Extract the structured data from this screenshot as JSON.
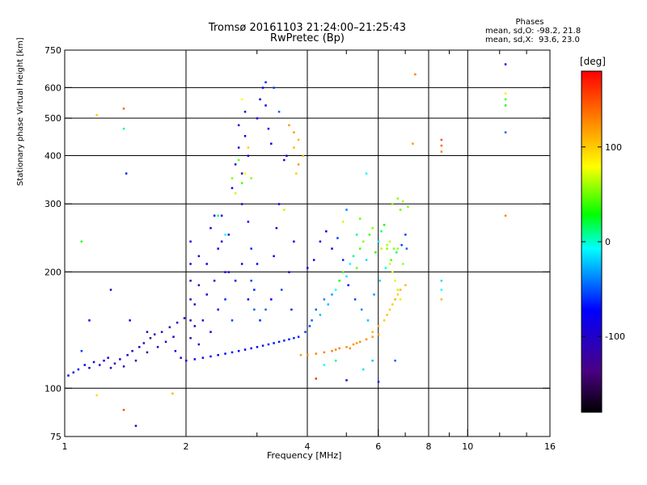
{
  "header": {
    "title": "Tromsø 20161103 21:24:00–21:25:43",
    "subtitle": "RwPretec (Bp)"
  },
  "phase_box": {
    "title": "Phases",
    "line_o": "mean, sd,O: -98.2, 21.8",
    "line_x": "mean, sd,X:  93.6, 23.0"
  },
  "colorbar": {
    "unit": "[deg]",
    "ticks": [
      "100",
      "0",
      "-100"
    ],
    "tick_values": [
      100,
      0,
      -100
    ],
    "range": [
      -180,
      180
    ]
  },
  "chart_data": {
    "type": "scatter",
    "xlabel": "Frequency [MHz]",
    "ylabel": "Stationary phase Virtual Height [km]",
    "x_scale": "log",
    "y_scale": "log",
    "xlim": [
      1,
      16
    ],
    "ylim": [
      75,
      750
    ],
    "x_ticks": [
      "1",
      "2",
      "4",
      "6",
      "8",
      "10",
      "16"
    ],
    "x_tick_values": [
      1,
      2,
      4,
      6,
      8,
      10,
      16
    ],
    "y_ticks": [
      "75",
      "100",
      "200",
      "300",
      "400",
      "500",
      "600",
      "750"
    ],
    "y_tick_values": [
      75,
      100,
      200,
      300,
      400,
      500,
      600,
      750
    ],
    "grid": true,
    "points": [
      [
        1.02,
        108,
        -110
      ],
      [
        1.05,
        110,
        -110
      ],
      [
        1.08,
        112,
        -100
      ],
      [
        1.12,
        115,
        -105
      ],
      [
        1.15,
        113,
        -110
      ],
      [
        1.18,
        117,
        -115
      ],
      [
        1.22,
        115,
        -120
      ],
      [
        1.25,
        118,
        -118
      ],
      [
        1.28,
        120,
        -115
      ],
      [
        1.3,
        113,
        -120
      ],
      [
        1.33,
        116,
        -125
      ],
      [
        1.37,
        119,
        -120
      ],
      [
        1.4,
        114,
        -130
      ],
      [
        1.43,
        122,
        -125
      ],
      [
        1.47,
        125,
        -130
      ],
      [
        1.5,
        118,
        -132
      ],
      [
        1.53,
        128,
        -128
      ],
      [
        1.57,
        131,
        -135
      ],
      [
        1.6,
        124,
        -130
      ],
      [
        1.63,
        135,
        -135
      ],
      [
        1.67,
        138,
        -130
      ],
      [
        1.7,
        128,
        -125
      ],
      [
        1.74,
        140,
        -130
      ],
      [
        1.78,
        132,
        -128
      ],
      [
        1.82,
        144,
        -130
      ],
      [
        1.86,
        136,
        -122
      ],
      [
        1.9,
        148,
        -125
      ],
      [
        1.94,
        120,
        -118
      ],
      [
        1.98,
        152,
        -120
      ],
      [
        1.88,
        125,
        -120
      ],
      [
        1.1,
        125,
        -80
      ],
      [
        1.15,
        150,
        -100
      ],
      [
        1.3,
        180,
        -130
      ],
      [
        1.45,
        150,
        -120
      ],
      [
        1.6,
        140,
        -125
      ],
      [
        1.4,
        470,
        -10
      ],
      [
        1.4,
        530,
        140
      ],
      [
        1.42,
        360,
        -90
      ],
      [
        1.2,
        510,
        100
      ],
      [
        1.1,
        240,
        10
      ],
      [
        1.4,
        88,
        150
      ],
      [
        1.2,
        96,
        95
      ],
      [
        1.5,
        80,
        -120
      ],
      [
        1.85,
        97,
        110
      ],
      [
        2.0,
        118,
        -110
      ],
      [
        2.1,
        119,
        -110
      ],
      [
        2.2,
        120,
        -105
      ],
      [
        2.3,
        121,
        -105
      ],
      [
        2.4,
        122,
        -105
      ],
      [
        2.5,
        123,
        -100
      ],
      [
        2.6,
        124,
        -100
      ],
      [
        2.7,
        125,
        -100
      ],
      [
        2.8,
        126,
        -100
      ],
      [
        2.9,
        127,
        -100
      ],
      [
        3.0,
        128,
        -100
      ],
      [
        3.1,
        129,
        -95
      ],
      [
        3.2,
        130,
        -95
      ],
      [
        3.3,
        131,
        -95
      ],
      [
        3.4,
        132,
        -95
      ],
      [
        3.5,
        133,
        -90
      ],
      [
        3.6,
        134,
        -90
      ],
      [
        3.7,
        135,
        -90
      ],
      [
        3.8,
        136,
        -90
      ],
      [
        2.05,
        135,
        -135
      ],
      [
        2.05,
        150,
        -130
      ],
      [
        2.05,
        170,
        -125
      ],
      [
        2.05,
        190,
        -125
      ],
      [
        2.05,
        210,
        -120
      ],
      [
        2.05,
        240,
        -115
      ],
      [
        2.1,
        145,
        -120
      ],
      [
        2.1,
        165,
        -120
      ],
      [
        2.15,
        130,
        -110
      ],
      [
        2.15,
        185,
        -120
      ],
      [
        2.15,
        220,
        -115
      ],
      [
        2.2,
        150,
        -115
      ],
      [
        2.25,
        175,
        -110
      ],
      [
        2.25,
        210,
        -115
      ],
      [
        2.3,
        140,
        -110
      ],
      [
        2.3,
        260,
        -110
      ],
      [
        2.35,
        190,
        -110
      ],
      [
        2.4,
        160,
        -100
      ],
      [
        2.4,
        230,
        -110
      ],
      [
        2.45,
        280,
        -110
      ],
      [
        2.5,
        170,
        -90
      ],
      [
        2.5,
        200,
        -105
      ],
      [
        2.55,
        250,
        -110
      ],
      [
        2.6,
        330,
        -100
      ],
      [
        2.6,
        150,
        -80
      ],
      [
        2.65,
        380,
        -120
      ],
      [
        2.7,
        420,
        -120
      ],
      [
        2.7,
        480,
        -115
      ],
      [
        2.75,
        360,
        -130
      ],
      [
        2.75,
        300,
        -110
      ],
      [
        2.8,
        450,
        -110
      ],
      [
        2.8,
        520,
        -110
      ],
      [
        2.85,
        400,
        -120
      ],
      [
        2.85,
        270,
        -100
      ],
      [
        2.9,
        230,
        -90
      ],
      [
        2.9,
        190,
        -80
      ],
      [
        2.95,
        160,
        -70
      ],
      [
        3.0,
        210,
        -100
      ],
      [
        3.0,
        500,
        -100
      ],
      [
        3.05,
        560,
        -110
      ],
      [
        3.1,
        600,
        -100
      ],
      [
        3.15,
        620,
        -90
      ],
      [
        3.15,
        540,
        -110
      ],
      [
        3.2,
        470,
        -120
      ],
      [
        3.25,
        430,
        -110
      ],
      [
        3.3,
        600,
        -80
      ],
      [
        3.3,
        220,
        -100
      ],
      [
        3.35,
        260,
        -110
      ],
      [
        3.4,
        300,
        -100
      ],
      [
        3.45,
        180,
        -80
      ],
      [
        3.5,
        390,
        -110
      ],
      [
        3.55,
        400,
        -110
      ],
      [
        3.6,
        200,
        -110
      ],
      [
        3.65,
        160,
        -90
      ],
      [
        3.7,
        240,
        -110
      ],
      [
        2.35,
        280,
        -110
      ],
      [
        2.45,
        240,
        -120
      ],
      [
        2.55,
        200,
        -125
      ],
      [
        2.65,
        190,
        -110
      ],
      [
        2.75,
        210,
        -120
      ],
      [
        2.85,
        170,
        -110
      ],
      [
        2.95,
        180,
        -90
      ],
      [
        3.05,
        150,
        -90
      ],
      [
        3.15,
        160,
        -70
      ],
      [
        3.25,
        170,
        -100
      ],
      [
        2.6,
        350,
        40
      ],
      [
        2.65,
        320,
        60
      ],
      [
        2.7,
        390,
        30
      ],
      [
        2.75,
        340,
        20
      ],
      [
        2.4,
        280,
        -10
      ],
      [
        2.5,
        250,
        -20
      ],
      [
        2.8,
        360,
        80
      ],
      [
        2.9,
        350,
        40
      ],
      [
        2.85,
        420,
        100
      ],
      [
        2.75,
        560,
        80
      ],
      [
        3.5,
        290,
        60
      ],
      [
        3.6,
        480,
        120
      ],
      [
        3.7,
        460,
        120
      ],
      [
        3.8,
        440,
        110
      ],
      [
        3.7,
        420,
        110
      ],
      [
        3.8,
        380,
        120
      ],
      [
        3.75,
        360,
        100
      ],
      [
        3.9,
        400,
        110
      ],
      [
        3.4,
        520,
        -70
      ],
      [
        3.95,
        140,
        -80
      ],
      [
        4.05,
        145,
        -80
      ],
      [
        4.1,
        150,
        -70
      ],
      [
        4.2,
        160,
        -70
      ],
      [
        4.3,
        155,
        -40
      ],
      [
        4.4,
        170,
        -60
      ],
      [
        4.5,
        165,
        -40
      ],
      [
        4.6,
        175,
        -50
      ],
      [
        4.7,
        180,
        -20
      ],
      [
        4.8,
        190,
        0
      ],
      [
        4.9,
        200,
        20
      ],
      [
        5.0,
        195,
        -30
      ],
      [
        5.1,
        210,
        -20
      ],
      [
        5.2,
        220,
        -10
      ],
      [
        5.3,
        205,
        30
      ],
      [
        5.4,
        230,
        20
      ],
      [
        5.5,
        240,
        40
      ],
      [
        5.6,
        215,
        -30
      ],
      [
        5.7,
        250,
        20
      ],
      [
        5.8,
        260,
        40
      ],
      [
        5.9,
        225,
        10
      ],
      [
        6.0,
        240,
        -30
      ],
      [
        6.1,
        255,
        -10
      ],
      [
        6.2,
        265,
        0
      ],
      [
        6.3,
        230,
        40
      ],
      [
        6.4,
        210,
        60
      ],
      [
        6.5,
        200,
        80
      ],
      [
        6.6,
        190,
        70
      ],
      [
        6.7,
        180,
        60
      ],
      [
        6.8,
        170,
        90
      ],
      [
        4.0,
        205,
        -110
      ],
      [
        4.15,
        215,
        -120
      ],
      [
        4.3,
        240,
        -110
      ],
      [
        4.45,
        255,
        -100
      ],
      [
        4.6,
        230,
        -110
      ],
      [
        4.75,
        245,
        -80
      ],
      [
        4.9,
        215,
        -90
      ],
      [
        5.05,
        185,
        -100
      ],
      [
        5.25,
        170,
        -80
      ],
      [
        5.45,
        160,
        -60
      ],
      [
        5.65,
        150,
        -40
      ],
      [
        5.85,
        175,
        -50
      ],
      [
        6.05,
        190,
        -30
      ],
      [
        6.25,
        205,
        -20
      ],
      [
        6.45,
        215,
        20
      ],
      [
        6.65,
        225,
        -10
      ],
      [
        6.85,
        235,
        -80
      ],
      [
        7.0,
        250,
        -80
      ],
      [
        6.9,
        210,
        50
      ],
      [
        7.05,
        230,
        -70
      ],
      [
        6.2,
        150,
        100
      ],
      [
        6.4,
        160,
        100
      ],
      [
        6.6,
        170,
        110
      ],
      [
        6.8,
        180,
        110
      ],
      [
        7.0,
        185,
        110
      ],
      [
        5.8,
        140,
        110
      ],
      [
        6.0,
        145,
        110
      ],
      [
        6.3,
        155,
        105
      ],
      [
        6.5,
        165,
        100
      ],
      [
        6.7,
        175,
        100
      ],
      [
        4.6,
        125,
        130
      ],
      [
        4.8,
        127,
        130
      ],
      [
        5.0,
        128,
        125
      ],
      [
        5.2,
        130,
        125
      ],
      [
        5.4,
        132,
        125
      ],
      [
        5.6,
        134,
        125
      ],
      [
        5.8,
        136,
        120
      ],
      [
        6.0,
        138,
        120
      ],
      [
        4.2,
        123,
        130
      ],
      [
        4.4,
        124,
        130
      ],
      [
        3.85,
        122,
        120
      ],
      [
        4.0,
        122,
        125
      ],
      [
        5.1,
        127,
        125
      ],
      [
        5.3,
        131,
        120
      ],
      [
        4.7,
        126,
        130
      ],
      [
        6.3,
        235,
        55
      ],
      [
        6.4,
        240,
        60
      ],
      [
        6.55,
        230,
        40
      ],
      [
        6.7,
        230,
        50
      ],
      [
        6.1,
        230,
        60
      ],
      [
        6.5,
        300,
        40
      ],
      [
        6.7,
        310,
        40
      ],
      [
        6.9,
        305,
        50
      ],
      [
        6.8,
        290,
        30
      ],
      [
        7.1,
        295,
        40
      ],
      [
        5.3,
        250,
        -10
      ],
      [
        5.6,
        360,
        -20
      ],
      [
        4.9,
        270,
        60
      ],
      [
        5.0,
        290,
        -60
      ],
      [
        5.4,
        275,
        30
      ],
      [
        4.4,
        115,
        -20
      ],
      [
        4.7,
        118,
        -10
      ],
      [
        5.0,
        105,
        -120
      ],
      [
        4.2,
        106,
        160
      ],
      [
        6.0,
        104,
        -90
      ],
      [
        5.5,
        112,
        -30
      ],
      [
        5.8,
        118,
        -40
      ],
      [
        6.6,
        118,
        -70
      ],
      [
        7.3,
        430,
        120
      ],
      [
        7.4,
        650,
        130
      ],
      [
        8.6,
        440,
        150
      ],
      [
        8.6,
        425,
        140
      ],
      [
        8.6,
        410,
        130
      ],
      [
        8.6,
        190,
        -30
      ],
      [
        8.6,
        180,
        -20
      ],
      [
        8.6,
        170,
        110
      ],
      [
        12.4,
        690,
        -100
      ],
      [
        12.4,
        580,
        90
      ],
      [
        12.4,
        560,
        20
      ],
      [
        12.4,
        540,
        0
      ],
      [
        12.4,
        460,
        -70
      ],
      [
        12.4,
        280,
        130
      ]
    ]
  }
}
